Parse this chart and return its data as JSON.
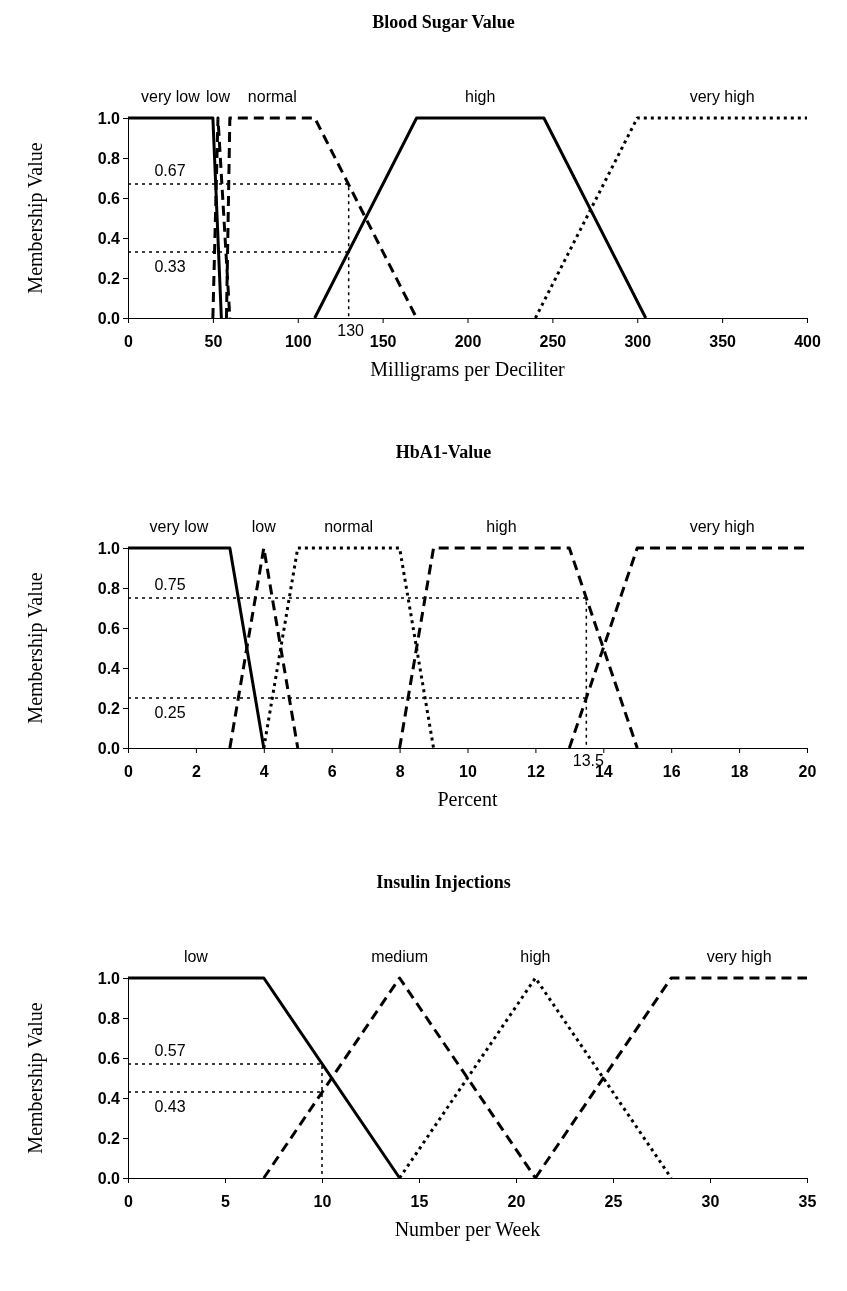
{
  "chart_data": [
    {
      "type": "line",
      "title": "Blood Sugar Value",
      "xlabel": "Milligrams per Deciliter",
      "ylabel": "Membership Value",
      "xlim": [
        0,
        400
      ],
      "xticks": [
        0,
        50,
        100,
        150,
        200,
        250,
        300,
        350,
        400
      ],
      "ylim": [
        0,
        1
      ],
      "yticks": [
        {
          "value": 0,
          "label": "0.0"
        },
        {
          "value": 0.2,
          "label": "0.2"
        },
        {
          "value": 0.4,
          "label": "0.4"
        },
        {
          "value": 0.6,
          "label": "0.6"
        },
        {
          "value": 0.8,
          "label": "0.8"
        },
        {
          "value": 1,
          "label": "1.0"
        }
      ],
      "grid": false,
      "marker": "none",
      "series": [
        {
          "name": "very low",
          "color": "#000000",
          "line_style": "solid",
          "x": [
            0,
            50,
            55
          ],
          "values": [
            1,
            1,
            0
          ]
        },
        {
          "name": "low",
          "color": "#000000",
          "line_style": "dashed",
          "x": [
            50,
            53,
            60
          ],
          "values": [
            0,
            1,
            0
          ]
        },
        {
          "name": "normal",
          "color": "#000000",
          "line_style": "dashed",
          "x": [
            58,
            60,
            110,
            170
          ],
          "values": [
            0,
            1,
            1,
            0
          ]
        },
        {
          "name": "high",
          "color": "#000000",
          "line_style": "solid",
          "x": [
            110,
            170,
            245,
            305
          ],
          "values": [
            0,
            1,
            1,
            0
          ]
        },
        {
          "name": "very high",
          "color": "#000000",
          "line_style": "dotted",
          "x": [
            240,
            300,
            400
          ],
          "values": [
            0,
            1,
            1
          ]
        },
        {
          "color": "#000000",
          "line_style": "dotted",
          "x": [
            0,
            130,
            130
          ],
          "values": [
            0.67,
            0.67,
            0
          ]
        },
        {
          "color": "#000000",
          "line_style": "dotted",
          "x": [
            0,
            130
          ],
          "values": [
            0.33,
            0.33
          ]
        }
      ],
      "annotations": [
        {
          "text": "0.67",
          "x": 0,
          "y": 0.67
        },
        {
          "text": "0.33",
          "x": 0,
          "y": 0.33
        },
        {
          "text": "130",
          "x": 130,
          "y": 0
        }
      ]
    },
    {
      "type": "line",
      "title": "HbA1-Value",
      "xlabel": "Percent",
      "ylabel": "Membership Value",
      "xlim": [
        0,
        20
      ],
      "xticks": [
        0,
        2,
        4,
        6,
        8,
        10,
        12,
        14,
        16,
        18,
        20
      ],
      "ylim": [
        0,
        1
      ],
      "yticks": [
        {
          "value": 0,
          "label": "0.0"
        },
        {
          "value": 0.2,
          "label": "0.2"
        },
        {
          "value": 0.4,
          "label": "0.4"
        },
        {
          "value": 0.6,
          "label": "0.6"
        },
        {
          "value": 0.8,
          "label": "0.8"
        },
        {
          "value": 1,
          "label": "1.0"
        }
      ],
      "grid": false,
      "marker": "none",
      "series": [
        {
          "name": "very low",
          "color": "#000000",
          "line_style": "solid",
          "x": [
            0,
            3,
            4
          ],
          "values": [
            1,
            1,
            0
          ]
        },
        {
          "name": "low",
          "color": "#000000",
          "line_style": "dashed",
          "x": [
            3,
            4,
            5
          ],
          "values": [
            0,
            1,
            0
          ]
        },
        {
          "name": "normal",
          "color": "#000000",
          "line_style": "dotted",
          "x": [
            4,
            5,
            8,
            9
          ],
          "values": [
            0,
            1,
            1,
            0
          ]
        },
        {
          "name": "high",
          "color": "#000000",
          "line_style": "dashed",
          "x": [
            8,
            9,
            13,
            15
          ],
          "values": [
            0,
            1,
            1,
            0
          ]
        },
        {
          "name": "very high",
          "color": "#000000",
          "line_style": "dashed",
          "x": [
            13,
            15,
            20
          ],
          "values": [
            0,
            1,
            1
          ]
        },
        {
          "color": "#000000",
          "line_style": "dotted",
          "x": [
            0,
            13.5,
            13.5
          ],
          "values": [
            0.75,
            0.75,
            0
          ]
        },
        {
          "color": "#000000",
          "line_style": "dotted",
          "x": [
            0,
            13.5
          ],
          "values": [
            0.25,
            0.25
          ]
        }
      ],
      "annotations": [
        {
          "text": "0.75",
          "x": 0,
          "y": 0.75
        },
        {
          "text": "0.25",
          "x": 0,
          "y": 0.25
        },
        {
          "text": "13.5",
          "x": 13.5,
          "y": 0
        }
      ]
    },
    {
      "type": "line",
      "title": "Insulin Injections",
      "xlabel": "Number per Week",
      "ylabel": "Membership Value",
      "xlim": [
        0,
        35
      ],
      "xticks": [
        0,
        5,
        10,
        15,
        20,
        25,
        30,
        35
      ],
      "ylim": [
        0,
        1
      ],
      "yticks": [
        {
          "value": 0,
          "label": "0.0"
        },
        {
          "value": 0.2,
          "label": "0.2"
        },
        {
          "value": 0.4,
          "label": "0.4"
        },
        {
          "value": 0.6,
          "label": "0.6"
        },
        {
          "value": 0.8,
          "label": "0.8"
        },
        {
          "value": 1,
          "label": "1.0"
        }
      ],
      "grid": false,
      "marker": "none",
      "series": [
        {
          "name": "low",
          "color": "#000000",
          "line_style": "solid",
          "x": [
            0,
            7,
            14
          ],
          "values": [
            1,
            1,
            0
          ]
        },
        {
          "name": "medium",
          "color": "#000000",
          "line_style": "dashed",
          "x": [
            7,
            14,
            21
          ],
          "values": [
            0,
            1,
            0
          ]
        },
        {
          "name": "high",
          "color": "#000000",
          "line_style": "dotted",
          "x": [
            14,
            21,
            28
          ],
          "values": [
            0,
            1,
            0
          ]
        },
        {
          "name": "very high",
          "color": "#000000",
          "line_style": "dashed",
          "x": [
            21,
            28,
            35
          ],
          "values": [
            0,
            1,
            1
          ]
        },
        {
          "color": "#000000",
          "line_style": "dotted",
          "x": [
            0,
            10,
            10
          ],
          "values": [
            0.57,
            0.57,
            0
          ]
        },
        {
          "color": "#000000",
          "line_style": "dotted",
          "x": [
            0,
            10
          ],
          "values": [
            0.43,
            0.43
          ]
        }
      ],
      "annotations": [
        {
          "text": "0.57",
          "x": 0,
          "y": 0.57
        },
        {
          "text": "0.43",
          "x": 0,
          "y": 0.43
        }
      ]
    }
  ]
}
